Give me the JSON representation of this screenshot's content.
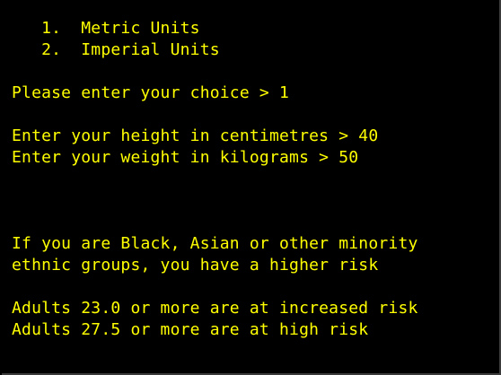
{
  "console": {
    "lines": [
      "   1.  Metric Units",
      "   2.  Imperial Units",
      "",
      "Please enter your choice > 1",
      "",
      "Enter your height in centimetres > 40",
      "Enter your weight in kilograms > 50",
      "",
      "",
      "",
      "If you are Black, Asian or other minority",
      "ethnic groups, you have a higher risk",
      "",
      "Adults 23.0 or more are at increased risk",
      "Adults 27.5 or more are at high risk"
    ],
    "text_color": "#ffff00",
    "background_color": "#000000"
  }
}
